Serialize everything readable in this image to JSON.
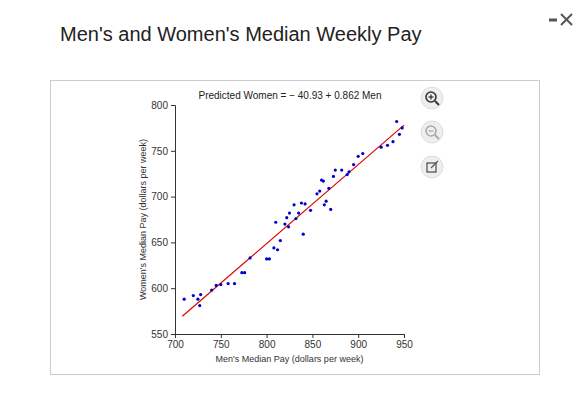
{
  "chart_data": {
    "type": "scatter",
    "title": "Men's and Women's Median Weekly Pay",
    "annotation": "Predicted Women = − 40.93 + 0.862 Men",
    "x_label": "Men's Median Pay (dollars per week)",
    "y_label": "Women's Median Pay (dollars per week)",
    "x": [
      710,
      720,
      725,
      727,
      728,
      740,
      745,
      750,
      758,
      765,
      773,
      776,
      782,
      800,
      803,
      808,
      810,
      812,
      815,
      820,
      822,
      824,
      825,
      830,
      832,
      835,
      838,
      840,
      842,
      848,
      855,
      858,
      860,
      862,
      863,
      865,
      868,
      870,
      873,
      875,
      882,
      888,
      890,
      895,
      900,
      905,
      925,
      932,
      938,
      942,
      945,
      948
    ],
    "values": [
      588,
      592,
      588,
      581,
      593,
      598,
      603,
      604,
      605,
      605,
      617,
      617,
      633,
      632,
      632,
      644,
      672,
      642,
      652,
      670,
      677,
      667,
      682,
      691,
      676,
      682,
      693,
      659,
      692,
      685,
      703,
      706,
      718,
      717,
      691,
      695,
      709,
      686,
      722,
      729,
      729,
      724,
      727,
      735,
      744,
      747,
      754,
      756,
      760,
      782,
      768,
      775
    ],
    "color": "#0000cc",
    "marker": "circle",
    "fit_line": {
      "type": "line",
      "color": "#e00000",
      "x": [
        708,
        950
      ],
      "values": [
        569.4,
        778
      ]
    },
    "xlim": [
      700,
      950
    ],
    "xticks": [
      700,
      750,
      800,
      850,
      900,
      950
    ],
    "ylim": [
      550,
      800
    ],
    "yticks": [
      550,
      600,
      650,
      700,
      750,
      800
    ],
    "grid": false
  }
}
